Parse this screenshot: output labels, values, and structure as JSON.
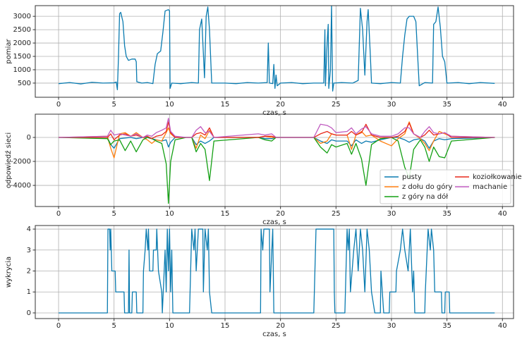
{
  "chart_data": [
    {
      "type": "line",
      "ylabel": "pomiar",
      "xlabel": "czas, s",
      "color": "#0a7bb0",
      "grid": true,
      "xlim": [
        -2.1,
        41
      ],
      "xticks": [
        0,
        5,
        10,
        15,
        20,
        25,
        30,
        35,
        40
      ],
      "ylim": [
        -30,
        3400
      ],
      "yticks": [
        500,
        1000,
        1500,
        2000,
        2500,
        3000
      ],
      "x": [
        0,
        1,
        2,
        3,
        4,
        5,
        5.2,
        5.3,
        5.4,
        5.5,
        5.6,
        5.8,
        5.95,
        6.1,
        6.3,
        6.6,
        6.9,
        7.0,
        7.05,
        7.5,
        8.0,
        8.5,
        8.7,
        8.9,
        9.2,
        9.4,
        9.6,
        9.9,
        10.0,
        10.05,
        10.2,
        11,
        12,
        12.6,
        12.7,
        12.9,
        13.05,
        13.15,
        13.3,
        13.45,
        13.6,
        13.8,
        15,
        16,
        17,
        18,
        18.8,
        18.9,
        19.0,
        19.3,
        19.4,
        19.5,
        19.6,
        19.7,
        20,
        21,
        22,
        23,
        23.9,
        24.0,
        24.05,
        24.2,
        24.3,
        24.35,
        24.5,
        24.6,
        24.7,
        24.8,
        25.5,
        26.5,
        27.0,
        27.2,
        27.4,
        27.6,
        27.8,
        27.9,
        28.1,
        28.2,
        29,
        30,
        30.8,
        31.0,
        31.2,
        31.4,
        31.6,
        32.0,
        32.2,
        32.4,
        32.5,
        33,
        33.7,
        33.8,
        34.0,
        34.2,
        34.4,
        34.6,
        34.8,
        35.0,
        36,
        37,
        38,
        39.3
      ],
      "values": [
        480,
        520,
        470,
        530,
        500,
        510,
        540,
        250,
        1500,
        3100,
        3150,
        2800,
        1900,
        1500,
        1350,
        1400,
        1400,
        1300,
        550,
        500,
        520,
        480,
        1200,
        1600,
        1700,
        2400,
        3200,
        3250,
        3200,
        300,
        500,
        480,
        520,
        500,
        2500,
        2900,
        1600,
        700,
        3000,
        3350,
        2500,
        500,
        500,
        480,
        520,
        500,
        520,
        2000,
        500,
        480,
        1200,
        300,
        800,
        400,
        500,
        520,
        480,
        500,
        500,
        2500,
        400,
        2000,
        2700,
        300,
        1000,
        3400,
        200,
        500,
        520,
        500,
        600,
        3300,
        2500,
        800,
        2800,
        3250,
        1500,
        500,
        480,
        520,
        500,
        1500,
        2300,
        2900,
        3000,
        3000,
        2800,
        1200,
        400,
        520,
        500,
        2700,
        2800,
        3350,
        2600,
        1500,
        1300,
        500,
        520,
        480,
        520,
        490
      ]
    },
    {
      "type": "line",
      "ylabel": "odpowiedź sieci",
      "xlabel": "czas, s",
      "grid": true,
      "legend": "lower right",
      "xlim": [
        -2.1,
        41
      ],
      "xticks": [
        0,
        5,
        10,
        15,
        20,
        25,
        30,
        35,
        40
      ],
      "ylim": [
        -5760,
        1940
      ],
      "yticks": [
        -4000,
        -2000,
        0
      ],
      "x": [
        0,
        4.4,
        4.7,
        5.0,
        5.5,
        6.0,
        6.5,
        7.0,
        7.6,
        8.0,
        8.4,
        8.8,
        9.3,
        9.7,
        9.9,
        10.1,
        10.5,
        11.5,
        12.0,
        12.4,
        12.8,
        13.2,
        13.6,
        14.0,
        18.0,
        18.6,
        19.2,
        19.6,
        23.0,
        23.6,
        24.2,
        24.6,
        25.0,
        26.0,
        26.4,
        26.8,
        27.3,
        27.7,
        28.2,
        29.0,
        30.0,
        30.6,
        31.2,
        31.6,
        32.0,
        32.6,
        33.0,
        33.4,
        33.8,
        34.3,
        34.8,
        35.4,
        39.3
      ],
      "series": [
        {
          "name": "pusty",
          "color": "#0a7bb0",
          "values": [
            0,
            0,
            -600,
            -900,
            -100,
            -50,
            0,
            -100,
            0,
            0,
            -100,
            -200,
            -300,
            -200,
            -800,
            -400,
            0,
            0,
            0,
            -600,
            -300,
            -500,
            -300,
            0,
            0,
            -100,
            -100,
            0,
            0,
            -300,
            -500,
            -200,
            -300,
            -300,
            -700,
            -200,
            -500,
            -300,
            -400,
            -200,
            0,
            0,
            -200,
            -400,
            -200,
            -100,
            -300,
            -900,
            -300,
            -100,
            -200,
            -100,
            0
          ]
        },
        {
          "name": "z dołu do góry",
          "color": "#ff7f0e",
          "values": [
            0,
            100,
            -900,
            -1700,
            300,
            400,
            100,
            400,
            0,
            -200,
            -500,
            -200,
            -300,
            400,
            800,
            300,
            0,
            0,
            0,
            -900,
            200,
            -100,
            600,
            0,
            0,
            100,
            0,
            0,
            0,
            -500,
            -300,
            300,
            200,
            200,
            -1000,
            200,
            500,
            100,
            200,
            -300,
            -700,
            -100,
            300,
            1300,
            300,
            -100,
            -500,
            -1100,
            -300,
            500,
            300,
            100,
            0
          ]
        },
        {
          "name": "z góry na dół",
          "color": "#14a014",
          "values": [
            0,
            -100,
            -600,
            -300,
            -200,
            -1100,
            -300,
            -1200,
            -200,
            0,
            -100,
            -300,
            -500,
            -2200,
            -5500,
            -2000,
            -200,
            0,
            0,
            -1200,
            -500,
            -1000,
            -3600,
            -300,
            0,
            -200,
            -300,
            0,
            0,
            -800,
            -1300,
            -600,
            -800,
            -500,
            -1400,
            -500,
            -1800,
            -4000,
            -600,
            -100,
            0,
            -300,
            -2500,
            -3400,
            -1000,
            -200,
            -800,
            -2000,
            -800,
            -1600,
            -1700,
            -300,
            0
          ]
        },
        {
          "name": "koziołkowanie",
          "color": "#e8291c",
          "values": [
            0,
            0,
            300,
            -200,
            200,
            300,
            100,
            200,
            0,
            100,
            -100,
            100,
            200,
            500,
            1300,
            400,
            0,
            0,
            0,
            300,
            400,
            200,
            800,
            0,
            0,
            100,
            100,
            0,
            0,
            300,
            500,
            300,
            200,
            200,
            500,
            200,
            400,
            1100,
            200,
            0,
            0,
            100,
            500,
            1200,
            300,
            0,
            200,
            600,
            200,
            300,
            400,
            0,
            0
          ]
        },
        {
          "name": "machanie",
          "color": "#c05cc0",
          "values": [
            0,
            100,
            600,
            200,
            300,
            200,
            100,
            300,
            0,
            200,
            100,
            400,
            600,
            800,
            1600,
            500,
            100,
            0,
            0,
            600,
            900,
            400,
            500,
            0,
            300,
            200,
            300,
            0,
            0,
            1100,
            1000,
            800,
            400,
            500,
            800,
            300,
            700,
            900,
            300,
            100,
            100,
            300,
            800,
            800,
            300,
            0,
            500,
            900,
            400,
            300,
            400,
            100,
            0
          ]
        }
      ]
    },
    {
      "type": "line",
      "ylabel": "wykrycia",
      "xlabel": "czas, s",
      "color": "#0a7bb0",
      "grid": true,
      "xlim": [
        -2.1,
        41
      ],
      "xticks": [
        0,
        5,
        10,
        15,
        20,
        25,
        30,
        35,
        40
      ],
      "ylim": [
        -0.27,
        4.17
      ],
      "yticks": [
        0,
        1,
        2,
        3,
        4
      ],
      "x": [
        0,
        4.4,
        4.45,
        4.6,
        4.65,
        4.7,
        4.8,
        5.1,
        5.15,
        5.9,
        5.95,
        6.3,
        6.35,
        6.4,
        6.6,
        6.65,
        7.0,
        7.05,
        7.6,
        7.65,
        7.8,
        7.9,
        8.05,
        8.1,
        8.2,
        8.5,
        8.55,
        8.8,
        8.85,
        9.0,
        9.3,
        9.35,
        9.6,
        9.7,
        9.8,
        9.9,
        10.0,
        10.1,
        10.2,
        10.3,
        11.8,
        11.85,
        12.0,
        12.2,
        12.3,
        12.4,
        12.5,
        12.6,
        13.0,
        13.05,
        13.2,
        13.4,
        13.5,
        13.6,
        13.8,
        18.2,
        18.25,
        18.4,
        18.5,
        19.0,
        19.05,
        19.3,
        19.4,
        23.0,
        23.05,
        23.2,
        24.8,
        24.85,
        24.9,
        25.8,
        25.85,
        26.0,
        26.1,
        26.2,
        26.3,
        26.6,
        26.8,
        27.0,
        27.2,
        27.4,
        27.6,
        27.8,
        28.0,
        28.2,
        28.5,
        29.0,
        29.05,
        29.3,
        29.8,
        29.85,
        30.4,
        30.45,
        30.8,
        31.0,
        31.2,
        31.5,
        31.7,
        31.9,
        32.0,
        32.1,
        33.0,
        33.05,
        33.3,
        33.5,
        33.6,
        33.8,
        33.9,
        34.5,
        34.55,
        34.8,
        34.85,
        35.2,
        35.25,
        39.3
      ],
      "values": [
        0,
        0,
        4,
        4,
        3,
        4,
        2,
        2,
        1,
        1,
        0,
        0,
        3,
        0,
        0,
        1,
        1,
        0,
        0,
        2,
        3,
        4,
        3,
        4,
        2,
        2,
        3,
        3,
        4,
        2,
        1,
        0,
        3,
        1,
        4,
        2,
        4,
        1,
        3,
        0,
        0,
        1,
        4,
        3,
        4,
        2,
        3,
        4,
        4,
        1,
        4,
        3,
        4,
        1,
        0,
        0,
        4,
        3,
        4,
        4,
        1,
        4,
        0,
        0,
        1,
        4,
        4,
        1,
        0,
        0,
        1,
        4,
        3,
        4,
        1,
        3,
        4,
        2,
        4,
        3,
        1,
        4,
        3,
        1,
        0,
        0,
        2,
        0,
        0,
        1,
        1,
        2,
        3,
        4,
        3,
        2,
        4,
        1,
        2,
        0,
        0,
        1,
        4,
        3,
        4,
        3,
        1,
        1,
        0,
        0,
        1,
        1,
        0,
        0
      ]
    }
  ]
}
